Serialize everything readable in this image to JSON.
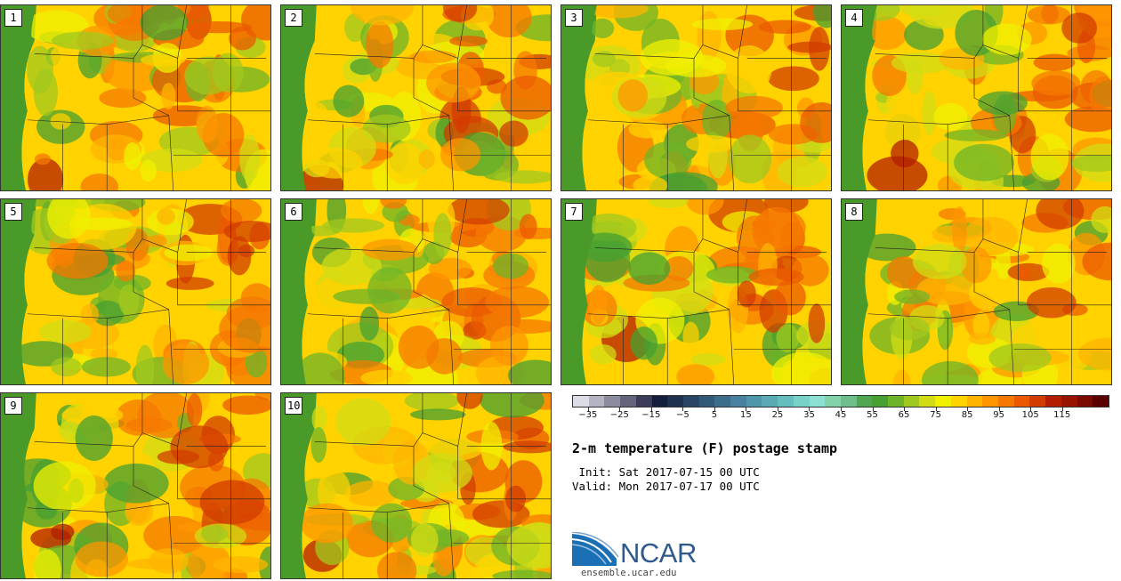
{
  "stamps": [
    {
      "label": "1"
    },
    {
      "label": "2"
    },
    {
      "label": "3"
    },
    {
      "label": "4"
    },
    {
      "label": "5"
    },
    {
      "label": "6"
    },
    {
      "label": "7"
    },
    {
      "label": "8"
    },
    {
      "label": "9"
    },
    {
      "label": "10"
    }
  ],
  "colorbar": {
    "colors": [
      "#dcdce6",
      "#b4b4c3",
      "#8c8ca0",
      "#64647d",
      "#3c3c5a",
      "#141e3c",
      "#1e3250",
      "#284664",
      "#325a78",
      "#3c6e8c",
      "#4682a0",
      "#5096aa",
      "#5aaab4",
      "#64bebe",
      "#78d2c8",
      "#8ce1d2",
      "#82d2aa",
      "#6ebe8c",
      "#50a550",
      "#46a032",
      "#6eb428",
      "#a0c81e",
      "#d2dc14",
      "#f0f000",
      "#ffd200",
      "#ffb400",
      "#ff9600",
      "#f57800",
      "#eb5a00",
      "#d23c00",
      "#b41e00",
      "#961400",
      "#780a00",
      "#5a0000"
    ],
    "tick_values": [
      "-35",
      "-25",
      "-15",
      "-5",
      "5",
      "15",
      "25",
      "35",
      "45",
      "55",
      "65",
      "75",
      "85",
      "95",
      "105",
      "115"
    ]
  },
  "title": "2-m temperature (F) postage stamp",
  "init": " Init: Sat 2017-07-15 00 UTC",
  "valid": "Valid: Mon 2017-07-17 00 UTC",
  "logo": {
    "text": "NCAR",
    "url": "ensemble.ucar.edu"
  }
}
